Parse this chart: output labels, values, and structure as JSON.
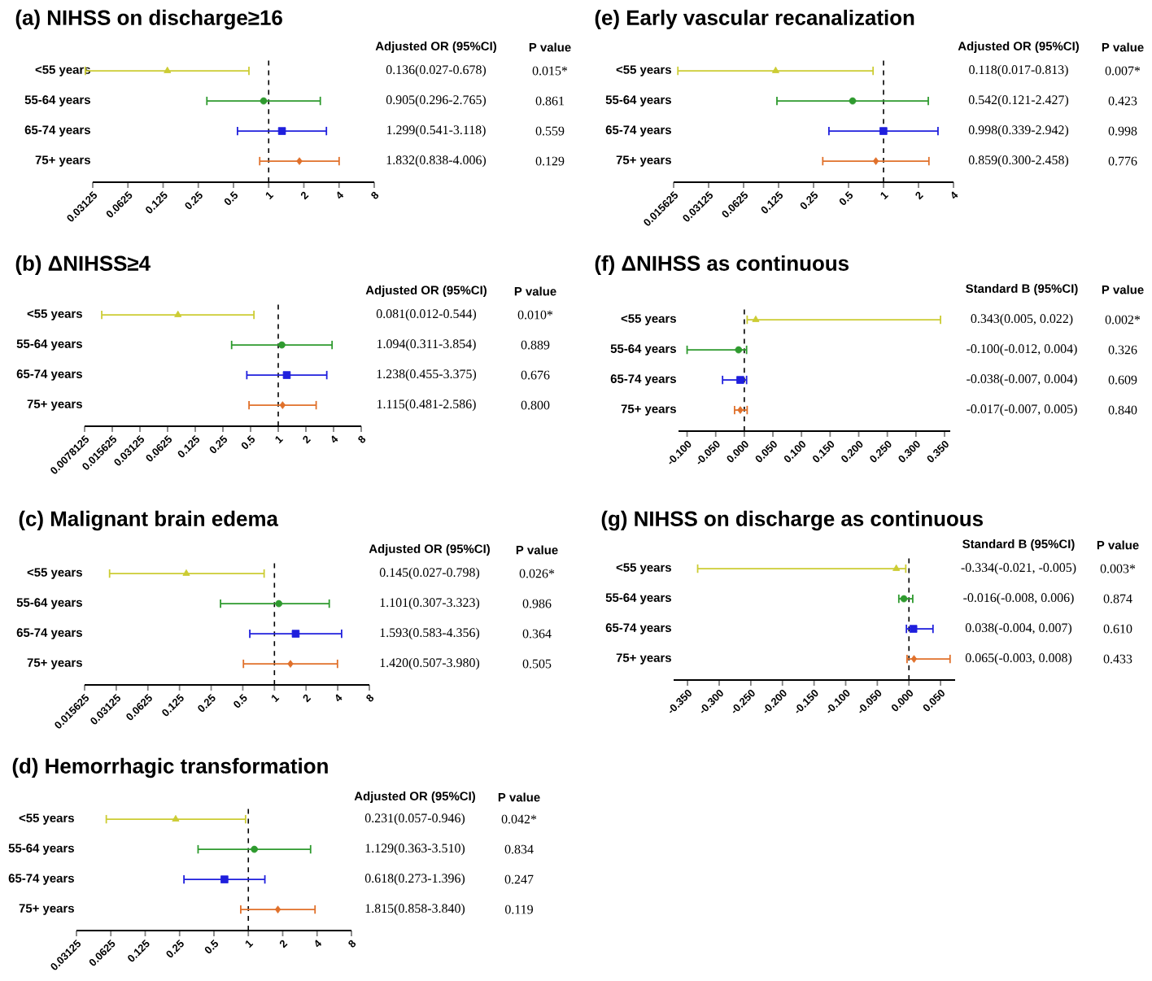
{
  "chart_data": [
    {
      "type": "scatter",
      "title": "(a) NIHSS on discharge≥16",
      "orientation": "horizontal",
      "log": "x",
      "categories": [
        "<55 years",
        "55-64 years",
        "65-74 years",
        "75+ years"
      ],
      "xlim": [
        0.03125,
        8
      ],
      "xticks": [
        0.03125,
        0.0625,
        0.125,
        0.25,
        0.5,
        1,
        2,
        4,
        8
      ],
      "ref_lines": [
        {
          "axis": "x",
          "value": 1,
          "line_style": "dashed"
        }
      ],
      "series": [
        {
          "color": "#cccc33",
          "marker": "triangle",
          "values": [
            0.136,
            null,
            null,
            null
          ],
          "errors": [
            [
              0.027,
              0.678
            ],
            null,
            null,
            null
          ]
        },
        {
          "color": "#2e9a2e",
          "marker": "circle",
          "values": [
            null,
            0.905,
            null,
            null
          ],
          "errors": [
            null,
            [
              0.296,
              2.765
            ],
            null,
            null
          ]
        },
        {
          "color": "#1f1fdd",
          "marker": "square",
          "values": [
            null,
            null,
            1.299,
            null
          ],
          "errors": [
            null,
            null,
            [
              0.541,
              3.118
            ],
            null
          ]
        },
        {
          "color": "#e0702a",
          "marker": "diamond",
          "values": [
            null,
            null,
            null,
            1.832
          ],
          "errors": [
            null,
            null,
            null,
            [
              0.838,
              4.006
            ]
          ]
        }
      ],
      "annotations": [
        "Adjusted OR (95%CI)",
        "P value",
        "0.136(0.027-0.678)",
        "0.015*",
        "0.905(0.296-2.765)",
        "0.861",
        "1.299(0.541-3.118)",
        "0.559",
        "1.832(0.838-4.006)",
        "0.129"
      ]
    },
    {
      "type": "scatter",
      "title": "(b) ΔNIHSS≥4",
      "orientation": "horizontal",
      "log": "x",
      "categories": [
        "<55 years",
        "55-64 years",
        "65-74 years",
        "75+ years"
      ],
      "xlim": [
        0.0078125,
        8
      ],
      "xticks": [
        0.0078125,
        0.015625,
        0.03125,
        0.0625,
        0.125,
        0.25,
        0.5,
        1,
        2,
        4,
        8
      ],
      "ref_lines": [
        {
          "axis": "x",
          "value": 1,
          "line_style": "dashed"
        }
      ],
      "series": [
        {
          "color": "#cccc33",
          "marker": "triangle",
          "values": [
            0.081,
            null,
            null,
            null
          ],
          "errors": [
            [
              0.012,
              0.544
            ],
            null,
            null,
            null
          ]
        },
        {
          "color": "#2e9a2e",
          "marker": "circle",
          "values": [
            null,
            1.094,
            null,
            null
          ],
          "errors": [
            null,
            [
              0.311,
              3.854
            ],
            null,
            null
          ]
        },
        {
          "color": "#1f1fdd",
          "marker": "square",
          "values": [
            null,
            null,
            1.238,
            null
          ],
          "errors": [
            null,
            null,
            [
              0.455,
              3.375
            ],
            null
          ]
        },
        {
          "color": "#e0702a",
          "marker": "diamond",
          "values": [
            null,
            null,
            null,
            1.115
          ],
          "errors": [
            null,
            null,
            null,
            [
              0.481,
              2.586
            ]
          ]
        }
      ],
      "annotations": [
        "Adjusted OR (95%CI)",
        "P value",
        "0.081(0.012-0.544)",
        "0.010*",
        "1.094(0.311-3.854)",
        "0.889",
        "1.238(0.455-3.375)",
        "0.676",
        "1.115(0.481-2.586)",
        "0.800"
      ]
    },
    {
      "type": "scatter",
      "title": "(c) Malignant brain edema",
      "orientation": "horizontal",
      "log": "x",
      "categories": [
        "<55 years",
        "55-64 years",
        "65-74 years",
        "75+ years"
      ],
      "xlim": [
        0.015625,
        8
      ],
      "xticks": [
        0.015625,
        0.03125,
        0.0625,
        0.125,
        0.25,
        0.5,
        1,
        2,
        4,
        8
      ],
      "ref_lines": [
        {
          "axis": "x",
          "value": 1,
          "line_style": "dashed"
        }
      ],
      "series": [
        {
          "color": "#cccc33",
          "marker": "triangle",
          "values": [
            0.145,
            null,
            null,
            null
          ],
          "errors": [
            [
              0.027,
              0.798
            ],
            null,
            null,
            null
          ]
        },
        {
          "color": "#2e9a2e",
          "marker": "circle",
          "values": [
            null,
            1.101,
            null,
            null
          ],
          "errors": [
            null,
            [
              0.307,
              3.323
            ],
            null,
            null
          ]
        },
        {
          "color": "#1f1fdd",
          "marker": "square",
          "values": [
            null,
            null,
            1.593,
            null
          ],
          "errors": [
            null,
            null,
            [
              0.583,
              4.356
            ],
            null
          ]
        },
        {
          "color": "#e0702a",
          "marker": "diamond",
          "values": [
            null,
            null,
            null,
            1.42
          ],
          "errors": [
            null,
            null,
            null,
            [
              0.507,
              3.98
            ]
          ]
        }
      ],
      "annotations": [
        "Adjusted OR (95%CI)",
        "P value",
        "0.145(0.027-0.798)",
        "0.026*",
        "1.101(0.307-3.323)",
        "0.986",
        "1.593(0.583-4.356)",
        "0.364",
        "1.420(0.507-3.980)",
        "0.505"
      ]
    },
    {
      "type": "scatter",
      "title": "(d) Hemorrhagic transformation",
      "orientation": "horizontal",
      "log": "x",
      "categories": [
        "<55 years",
        "55-64 years",
        "65-74 years",
        "75+ years"
      ],
      "xlim": [
        0.03125,
        8
      ],
      "xticks": [
        0.03125,
        0.0625,
        0.125,
        0.25,
        0.5,
        1,
        2,
        4,
        8
      ],
      "ref_lines": [
        {
          "axis": "x",
          "value": 1,
          "line_style": "dashed"
        }
      ],
      "series": [
        {
          "color": "#cccc33",
          "marker": "triangle",
          "values": [
            0.231,
            null,
            null,
            null
          ],
          "errors": [
            [
              0.057,
              0.946
            ],
            null,
            null,
            null
          ]
        },
        {
          "color": "#2e9a2e",
          "marker": "circle",
          "values": [
            null,
            1.129,
            null,
            null
          ],
          "errors": [
            null,
            [
              0.363,
              3.51
            ],
            null,
            null
          ]
        },
        {
          "color": "#1f1fdd",
          "marker": "square",
          "values": [
            null,
            null,
            0.618,
            null
          ],
          "errors": [
            null,
            null,
            [
              0.273,
              1.396
            ],
            null
          ]
        },
        {
          "color": "#e0702a",
          "marker": "diamond",
          "values": [
            null,
            null,
            null,
            1.815
          ],
          "errors": [
            null,
            null,
            null,
            [
              0.858,
              3.84
            ]
          ]
        }
      ],
      "annotations": [
        "Adjusted OR (95%CI)",
        "P value",
        "0.231(0.057-0.946)",
        "0.042*",
        "1.129(0.363-3.510)",
        "0.834",
        "0.618(0.273-1.396)",
        "0.247",
        "1.815(0.858-3.840)",
        "0.119"
      ]
    },
    {
      "type": "scatter",
      "title": "(e) Early vascular recanalization",
      "orientation": "horizontal",
      "log": "x",
      "categories": [
        "<55 years",
        "55-64 years",
        "65-74 years",
        "75+ years"
      ],
      "xlim": [
        0.015625,
        4
      ],
      "xticks": [
        0.015625,
        0.03125,
        0.0625,
        0.125,
        0.25,
        0.5,
        1,
        2,
        4
      ],
      "ref_lines": [
        {
          "axis": "x",
          "value": 1,
          "line_style": "dashed"
        }
      ],
      "series": [
        {
          "color": "#cccc33",
          "marker": "triangle",
          "values": [
            0.118,
            null,
            null,
            null
          ],
          "errors": [
            [
              0.017,
              0.813
            ],
            null,
            null,
            null
          ]
        },
        {
          "color": "#2e9a2e",
          "marker": "circle",
          "values": [
            null,
            0.542,
            null,
            null
          ],
          "errors": [
            null,
            [
              0.121,
              2.427
            ],
            null,
            null
          ]
        },
        {
          "color": "#1f1fdd",
          "marker": "square",
          "values": [
            null,
            null,
            0.998,
            null
          ],
          "errors": [
            null,
            null,
            [
              0.339,
              2.942
            ],
            null
          ]
        },
        {
          "color": "#e0702a",
          "marker": "diamond",
          "values": [
            null,
            null,
            null,
            0.859
          ],
          "errors": [
            null,
            null,
            null,
            [
              0.3,
              2.458
            ]
          ]
        }
      ],
      "annotations": [
        "Adjusted OR (95%CI)",
        "P value",
        "0.118(0.017-0.813)",
        "0.007*",
        "0.542(0.121-2.427)",
        "0.423",
        "0.998(0.339-2.942)",
        "0.998",
        "0.859(0.300-2.458)",
        "0.776"
      ]
    },
    {
      "type": "scatter",
      "title": "(f) ΔNIHSS as continuous",
      "orientation": "horizontal",
      "categories": [
        "<55 years",
        "55-64 years",
        "65-74 years",
        "75+ years"
      ],
      "xlim": [
        -0.115,
        0.36
      ],
      "xticks": [
        {
          "value": -0.1,
          "label": "-0.100"
        },
        {
          "value": -0.05,
          "label": "-0.050"
        },
        {
          "value": 0,
          "label": "0.000"
        },
        {
          "value": 0.05,
          "label": "0.050"
        },
        {
          "value": 0.1,
          "label": "0.100"
        },
        {
          "value": 0.15,
          "label": "0.150"
        },
        {
          "value": 0.2,
          "label": "0.200"
        },
        {
          "value": 0.25,
          "label": "0.250"
        },
        {
          "value": 0.3,
          "label": "0.300"
        },
        {
          "value": 0.35,
          "label": "0.350"
        }
      ],
      "ref_lines": [
        {
          "axis": "x",
          "value": 0,
          "line_style": "dashed"
        }
      ],
      "series": [
        {
          "color": "#cccc33",
          "marker": "triangle",
          "values": [
            0.02,
            null,
            null,
            null
          ],
          "errors": [
            [
              0.005,
              0.343
            ],
            null,
            null,
            null
          ]
        },
        {
          "color": "#2e9a2e",
          "marker": "circle",
          "values": [
            null,
            -0.01,
            null,
            null
          ],
          "errors": [
            null,
            [
              -0.1,
              0.004
            ],
            null,
            null
          ]
        },
        {
          "color": "#1f1fdd",
          "marker": "square",
          "values": [
            null,
            null,
            -0.007,
            null
          ],
          "errors": [
            null,
            null,
            [
              -0.038,
              0.004
            ],
            null
          ]
        },
        {
          "color": "#e0702a",
          "marker": "diamond",
          "values": [
            null,
            null,
            null,
            -0.007
          ],
          "errors": [
            null,
            null,
            null,
            [
              -0.017,
              0.005
            ]
          ]
        }
      ],
      "annotations": [
        "Standard B (95%CI)",
        "P value",
        "0.343(0.005, 0.022)",
        "0.002*",
        "-0.100(-0.012, 0.004)",
        "0.326",
        "-0.038(-0.007, 0.004)",
        "0.609",
        "-0.017(-0.007, 0.005)",
        "0.840"
      ]
    },
    {
      "type": "scatter",
      "title": "(g) NIHSS on discharge as continuous",
      "orientation": "horizontal",
      "categories": [
        "<55 years",
        "55-64 years",
        "65-74 years",
        "75+ years"
      ],
      "xlim": [
        -0.372,
        0.073
      ],
      "xticks": [
        {
          "value": -0.35,
          "label": "-0.350"
        },
        {
          "value": -0.3,
          "label": "-0.300"
        },
        {
          "value": -0.25,
          "label": "-0.250"
        },
        {
          "value": -0.2,
          "label": "-0.200"
        },
        {
          "value": -0.15,
          "label": "-0.150"
        },
        {
          "value": -0.1,
          "label": "-0.100"
        },
        {
          "value": -0.05,
          "label": "-0.050"
        },
        {
          "value": 0,
          "label": "0.000"
        },
        {
          "value": 0.05,
          "label": "0.050"
        }
      ],
      "ref_lines": [
        {
          "axis": "x",
          "value": 0,
          "line_style": "dashed"
        }
      ],
      "series": [
        {
          "color": "#cccc33",
          "marker": "triangle",
          "values": [
            -0.02,
            null,
            null,
            null
          ],
          "errors": [
            [
              -0.334,
              -0.005
            ],
            null,
            null,
            null
          ]
        },
        {
          "color": "#2e9a2e",
          "marker": "circle",
          "values": [
            null,
            -0.008,
            null,
            null
          ],
          "errors": [
            null,
            [
              -0.016,
              0.006
            ],
            null,
            null
          ]
        },
        {
          "color": "#1f1fdd",
          "marker": "square",
          "values": [
            null,
            null,
            0.007,
            null
          ],
          "errors": [
            null,
            null,
            [
              -0.004,
              0.038
            ],
            null
          ]
        },
        {
          "color": "#e0702a",
          "marker": "diamond",
          "values": [
            null,
            null,
            null,
            0.008
          ],
          "errors": [
            null,
            null,
            null,
            [
              -0.003,
              0.065
            ]
          ]
        }
      ],
      "annotations": [
        "Standard B (95%CI)",
        "P value",
        "-0.334(-0.021, -0.005)",
        "0.003*",
        "-0.016(-0.008, 0.006)",
        "0.874",
        "0.038(-0.004, 0.007)",
        "0.610",
        "0.065(-0.003, 0.008)",
        "0.433"
      ]
    }
  ]
}
